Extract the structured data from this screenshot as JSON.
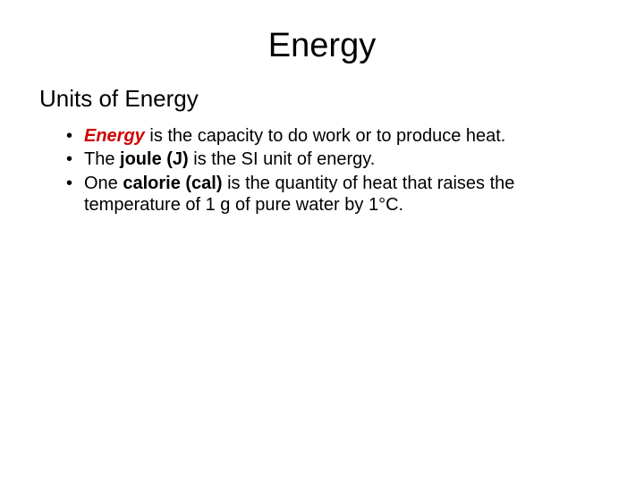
{
  "colors": {
    "background": "#ffffff",
    "text": "#000000",
    "accent_red": "#d10000"
  },
  "typography": {
    "font_family": "Arial",
    "title_fontsize": 38,
    "subtitle_fontsize": 26,
    "body_fontsize": 20
  },
  "slide": {
    "title": "Energy",
    "subtitle": "Units of Energy",
    "bullets": [
      {
        "lead_bold": "Energy",
        "lead_style": "bold-italic-red",
        "rest": " is the capacity to do work or to produce heat."
      },
      {
        "lead_bold": "joule (J)",
        "pre": "The ",
        "rest": " is the SI unit of energy."
      },
      {
        "lead_bold": "calorie (cal)",
        "pre": "One ",
        "rest": " is the quantity of heat that raises the temperature of 1 g of pure water by 1°C."
      }
    ]
  }
}
